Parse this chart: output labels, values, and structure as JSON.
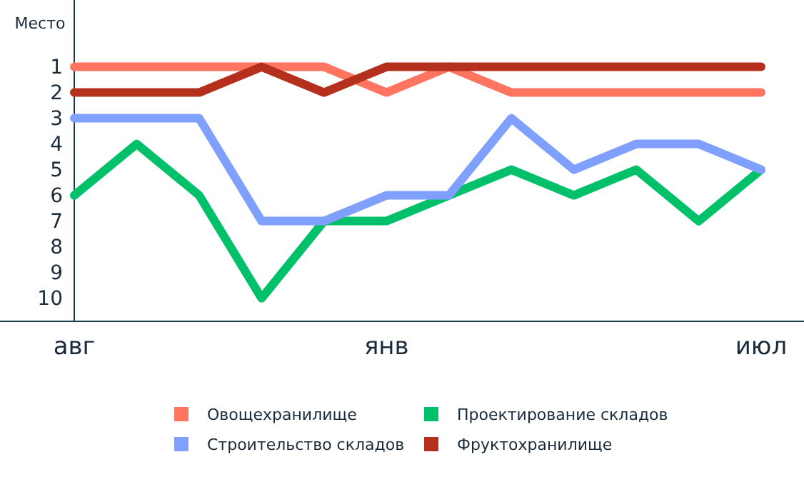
{
  "chart_data": {
    "type": "line",
    "ylabel": "Место",
    "categories": [
      "авг",
      null,
      null,
      null,
      null,
      "янв",
      null,
      null,
      null,
      null,
      null,
      "июл"
    ],
    "ylim": [
      10.9,
      -1.6
    ],
    "yticks": [
      1,
      2,
      3,
      4,
      5,
      6,
      7,
      8,
      9,
      10
    ],
    "grid": false,
    "legend": "bottom",
    "marker": "none",
    "line_style": "solid",
    "series": [
      {
        "name": "Овощехранилище",
        "color": "#ff7560",
        "values": [
          1,
          1,
          1,
          1,
          1,
          2,
          1,
          2,
          2,
          2,
          2,
          2
        ]
      },
      {
        "name": "Проектирование складов",
        "color": "#00c06a",
        "values": [
          6,
          4,
          6,
          10,
          7,
          7,
          6,
          5,
          6,
          5,
          7,
          5
        ]
      },
      {
        "name": "Строительство складов",
        "color": "#7fa0ff",
        "values": [
          3,
          3,
          3,
          7,
          7,
          6,
          6,
          3,
          5,
          4,
          4,
          5
        ]
      },
      {
        "name": "Фруктохранилище",
        "color": "#b5301c",
        "values": [
          2,
          2,
          2,
          1,
          2,
          1,
          1,
          1,
          1,
          1,
          1,
          1
        ]
      }
    ]
  }
}
